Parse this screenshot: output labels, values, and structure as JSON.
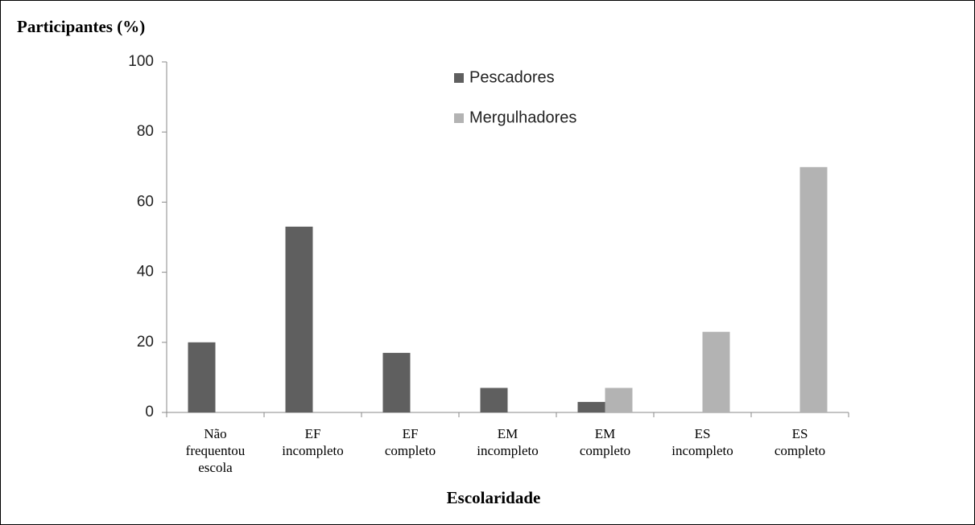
{
  "chart_data": {
    "type": "bar",
    "title": "Participantes (%)",
    "x_label": "Escolaridade",
    "categories": [
      "Não\nfrequentou\nescola",
      "EF\nincompleto",
      "EF\ncompleto",
      "EM\nincompleto",
      "EM\ncompleto",
      "ES\nincompleto",
      "ES\ncompleto"
    ],
    "series": [
      {
        "name": "Pescadores",
        "color": "#5f5f5f",
        "values": [
          20,
          53,
          17,
          7,
          3,
          0,
          0
        ]
      },
      {
        "name": "Mergulhadores",
        "color": "#b3b3b3",
        "values": [
          0,
          0,
          0,
          0,
          7,
          23,
          70
        ]
      }
    ],
    "ylim": [
      0,
      100
    ],
    "yticks": [
      0,
      20,
      40,
      60,
      80,
      100
    ],
    "grid": false
  }
}
